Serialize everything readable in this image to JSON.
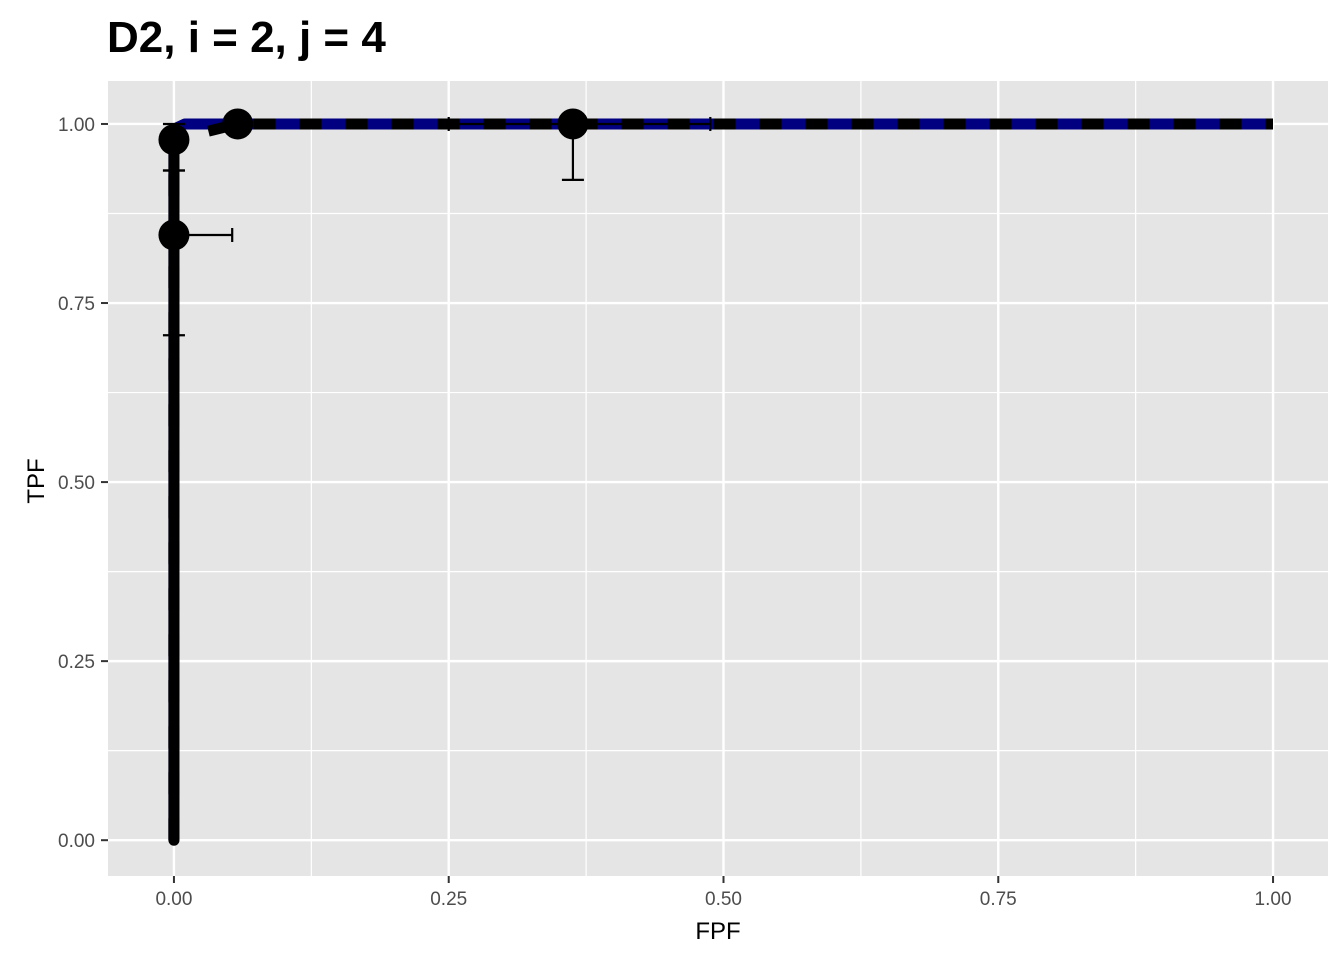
{
  "chart_data": {
    "type": "line",
    "title": "D2, i = 2, j = 4",
    "xlabel": "FPF",
    "ylabel": "TPF",
    "xlim": [
      -0.06,
      1.05
    ],
    "ylim": [
      -0.05,
      1.06
    ],
    "x_ticks": [
      0.0,
      0.25,
      0.5,
      0.75,
      1.0
    ],
    "x_tick_labels": [
      "0.00",
      "0.25",
      "0.50",
      "0.75",
      "1.00"
    ],
    "y_ticks": [
      0.0,
      0.25,
      0.5,
      0.75,
      1.0
    ],
    "y_tick_labels": [
      "0.00",
      "0.25",
      "0.50",
      "0.75",
      "1.00"
    ],
    "grid": true,
    "legend": "none",
    "colors": {
      "panel": "#e5e5e5",
      "grid": "#ffffff",
      "fitted_curve": "#000080",
      "empirical": "#000000"
    },
    "series": [
      {
        "style": "thick solid navy",
        "x": [
          0.0,
          0.0,
          0.003,
          0.01,
          1.0
        ],
        "y": [
          0.0,
          0.97,
          0.995,
          1.0,
          1.0
        ]
      },
      {
        "style": "dashed black",
        "x": [
          0.0,
          0.0,
          0.0,
          0.058,
          0.363,
          1.0
        ],
        "y": [
          0.0,
          0.845,
          0.978,
          1.0,
          1.0,
          1.0
        ]
      }
    ],
    "points": [
      {
        "x": 0.0,
        "y": 0.845,
        "x_err": [
          0.0,
          0.053
        ],
        "y_err": [
          0.705,
          0.935
        ]
      },
      {
        "x": 0.0,
        "y": 0.978,
        "x_err": [
          0.0,
          0.0
        ],
        "y_err": [
          0.935,
          1.0
        ]
      },
      {
        "x": 0.058,
        "y": 1.0,
        "x_err": [
          0.058,
          0.058
        ],
        "y_err": [
          1.0,
          1.0
        ]
      },
      {
        "x": 0.363,
        "y": 1.0,
        "x_err": [
          0.25,
          0.488
        ],
        "y_err": [
          0.922,
          1.0
        ]
      }
    ]
  }
}
